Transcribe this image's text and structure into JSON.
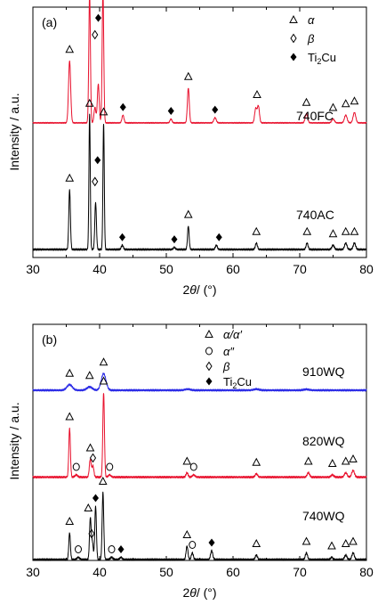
{
  "colors": {
    "red": "#e8112d",
    "black": "#000000",
    "blue": "#2a2ae6"
  },
  "chart_data": [
    {
      "panel_label": "(a)",
      "type": "line",
      "xlabel": "2θ/ (°)",
      "ylabel": "Intensity / a.u.",
      "xlim": [
        30,
        80
      ],
      "xticks": [
        30,
        40,
        50,
        60,
        70,
        80
      ],
      "legend": [
        {
          "marker": "triangle",
          "label": "α"
        },
        {
          "marker": "diamond-open",
          "label": "β"
        },
        {
          "marker": "diamond-filled",
          "label": "Ti2Cu"
        }
      ],
      "series": [
        {
          "name": "740FC",
          "color": "#e8112d",
          "baseline": 0.18,
          "peaks": [
            {
              "x": 35.5,
              "h": 0.48,
              "w": 0.16
            },
            {
              "x": 38.5,
              "h": 1.0,
              "w": 0.12
            },
            {
              "x": 39.3,
              "h": 0.12,
              "w": 0.14
            },
            {
              "x": 39.8,
              "h": 0.3,
              "w": 0.14
            },
            {
              "x": 40.5,
              "h": 1.02,
              "w": 0.12
            },
            {
              "x": 43.5,
              "h": 0.06,
              "w": 0.15
            },
            {
              "x": 50.7,
              "h": 0.03,
              "w": 0.15
            },
            {
              "x": 53.3,
              "h": 0.27,
              "w": 0.14
            },
            {
              "x": 57.3,
              "h": 0.04,
              "w": 0.18
            },
            {
              "x": 63.4,
              "h": 0.11,
              "w": 0.16
            },
            {
              "x": 63.8,
              "h": 0.13,
              "w": 0.16
            },
            {
              "x": 71.0,
              "h": 0.07,
              "w": 0.18
            },
            {
              "x": 75.0,
              "h": 0.03,
              "w": 0.2
            },
            {
              "x": 76.9,
              "h": 0.06,
              "w": 0.2
            },
            {
              "x": 78.2,
              "h": 0.08,
              "w": 0.2
            }
          ],
          "markers": [
            {
              "x": 35.5,
              "symbol": "triangle",
              "h": 0.48
            },
            {
              "x": 38.5,
              "symbol": "triangle",
              "h": 1.0
            },
            {
              "x": 39.3,
              "symbol": "diamond-open",
              "h": 0.62
            },
            {
              "x": 39.8,
              "symbol": "diamond-filled",
              "h": 0.75
            },
            {
              "x": 40.5,
              "symbol": "triangle",
              "h": 1.02
            },
            {
              "x": 43.5,
              "symbol": "diamond-filled",
              "h": 0.06
            },
            {
              "x": 50.7,
              "symbol": "diamond-filled",
              "h": 0.03
            },
            {
              "x": 53.3,
              "symbol": "triangle",
              "h": 0.27
            },
            {
              "x": 57.3,
              "symbol": "diamond-filled",
              "h": 0.04
            },
            {
              "x": 63.6,
              "symbol": "triangle",
              "h": 0.13
            },
            {
              "x": 71.0,
              "symbol": "triangle",
              "h": 0.07
            },
            {
              "x": 75.0,
              "symbol": "triangle",
              "h": 0.03
            },
            {
              "x": 76.9,
              "symbol": "triangle",
              "h": 0.06
            },
            {
              "x": 78.2,
              "symbol": "triangle",
              "h": 0.08
            }
          ]
        },
        {
          "name": "740AC",
          "color": "#000000",
          "baseline": 0.0,
          "peaks": [
            {
              "x": 35.5,
              "h": 0.28,
              "w": 0.12
            },
            {
              "x": 38.5,
              "h": 0.63,
              "w": 0.1
            },
            {
              "x": 39.4,
              "h": 0.22,
              "w": 0.12
            },
            {
              "x": 40.6,
              "h": 0.59,
              "w": 0.1
            },
            {
              "x": 43.4,
              "h": 0.02,
              "w": 0.15
            },
            {
              "x": 51.2,
              "h": 0.01,
              "w": 0.15
            },
            {
              "x": 53.3,
              "h": 0.11,
              "w": 0.12
            },
            {
              "x": 57.5,
              "h": 0.02,
              "w": 0.15
            },
            {
              "x": 63.5,
              "h": 0.03,
              "w": 0.15
            },
            {
              "x": 71.1,
              "h": 0.03,
              "w": 0.15
            },
            {
              "x": 75.0,
              "h": 0.02,
              "w": 0.18
            },
            {
              "x": 76.9,
              "h": 0.03,
              "w": 0.18
            },
            {
              "x": 78.2,
              "h": 0.03,
              "w": 0.18
            }
          ],
          "markers": [
            {
              "x": 35.5,
              "symbol": "triangle",
              "h": 0.28
            },
            {
              "x": 38.5,
              "symbol": "triangle",
              "h": 0.63
            },
            {
              "x": 39.3,
              "symbol": "diamond-open",
              "h": 0.28
            },
            {
              "x": 39.7,
              "symbol": "diamond-filled",
              "h": 0.38
            },
            {
              "x": 40.6,
              "symbol": "triangle",
              "h": 0.59
            },
            {
              "x": 43.4,
              "symbol": "diamond-filled",
              "h": 0.02
            },
            {
              "x": 51.2,
              "symbol": "diamond-filled",
              "h": 0.01
            },
            {
              "x": 53.3,
              "symbol": "triangle",
              "h": 0.11
            },
            {
              "x": 57.9,
              "symbol": "diamond-filled",
              "h": 0.02
            },
            {
              "x": 63.5,
              "symbol": "triangle",
              "h": 0.03
            },
            {
              "x": 71.1,
              "symbol": "triangle",
              "h": 0.03
            },
            {
              "x": 75.0,
              "symbol": "triangle",
              "h": 0.02
            },
            {
              "x": 76.9,
              "symbol": "triangle",
              "h": 0.03
            },
            {
              "x": 78.2,
              "symbol": "triangle",
              "h": 0.03
            }
          ]
        }
      ]
    },
    {
      "panel_label": "(b)",
      "type": "line",
      "xlabel": "2θ/ (°)",
      "ylabel": "Intensity / a.u.",
      "xlim": [
        30,
        80
      ],
      "xticks": [
        30,
        40,
        50,
        60,
        70,
        80
      ],
      "legend": [
        {
          "marker": "triangle",
          "label": "α/α′"
        },
        {
          "marker": "circle-open",
          "label": "α″"
        },
        {
          "marker": "diamond-open",
          "label": "β"
        },
        {
          "marker": "diamond-filled",
          "label": "Ti2Cu"
        }
      ],
      "series": [
        {
          "name": "910WQ",
          "color": "#2a2ae6",
          "baseline": 0.76,
          "peaks": [
            {
              "x": 35.5,
              "h": 0.025,
              "w": 0.4
            },
            {
              "x": 38.5,
              "h": 0.015,
              "w": 0.4
            },
            {
              "x": 40.6,
              "h": 0.075,
              "w": 0.35
            },
            {
              "x": 53.2,
              "h": 0.005,
              "w": 0.4
            },
            {
              "x": 63.5,
              "h": 0.005,
              "w": 0.4
            },
            {
              "x": 71.0,
              "h": 0.004,
              "w": 0.4
            }
          ],
          "markers": [
            {
              "x": 35.5,
              "symbol": "triangle",
              "h": 0.025
            },
            {
              "x": 38.5,
              "symbol": "triangle",
              "h": 0.015
            },
            {
              "x": 40.6,
              "symbol": "triangle",
              "h": 0.075
            }
          ]
        },
        {
          "name": "820WQ",
          "color": "#e8112d",
          "baseline": 0.37,
          "peaks": [
            {
              "x": 35.5,
              "h": 0.22,
              "w": 0.12
            },
            {
              "x": 36.5,
              "h": 0.01,
              "w": 0.2
            },
            {
              "x": 38.6,
              "h": 0.08,
              "w": 0.14
            },
            {
              "x": 39.0,
              "h": 0.05,
              "w": 0.14
            },
            {
              "x": 40.6,
              "h": 0.38,
              "w": 0.12
            },
            {
              "x": 41.5,
              "h": 0.01,
              "w": 0.2
            },
            {
              "x": 53.1,
              "h": 0.02,
              "w": 0.15
            },
            {
              "x": 54.1,
              "h": 0.01,
              "w": 0.2
            },
            {
              "x": 63.5,
              "h": 0.015,
              "w": 0.18
            },
            {
              "x": 71.3,
              "h": 0.02,
              "w": 0.18
            },
            {
              "x": 74.9,
              "h": 0.01,
              "w": 0.2
            },
            {
              "x": 76.9,
              "h": 0.02,
              "w": 0.2
            },
            {
              "x": 78.0,
              "h": 0.03,
              "w": 0.2
            }
          ],
          "markers": [
            {
              "x": 35.5,
              "symbol": "triangle",
              "h": 0.22
            },
            {
              "x": 36.5,
              "symbol": "circle-open",
              "h": 0.01
            },
            {
              "x": 38.6,
              "symbol": "triangle",
              "h": 0.08
            },
            {
              "x": 39.0,
              "symbol": "diamond-open",
              "h": 0.05
            },
            {
              "x": 40.6,
              "symbol": "triangle",
              "h": 0.38
            },
            {
              "x": 41.5,
              "symbol": "circle-open",
              "h": 0.01
            },
            {
              "x": 53.1,
              "symbol": "triangle",
              "h": 0.02
            },
            {
              "x": 54.1,
              "symbol": "circle-open",
              "h": 0.01
            },
            {
              "x": 63.5,
              "symbol": "triangle",
              "h": 0.015
            },
            {
              "x": 71.3,
              "symbol": "triangle",
              "h": 0.02
            },
            {
              "x": 74.9,
              "symbol": "triangle",
              "h": 0.01
            },
            {
              "x": 76.9,
              "symbol": "triangle",
              "h": 0.02
            },
            {
              "x": 78.0,
              "symbol": "triangle",
              "h": 0.03
            }
          ]
        },
        {
          "name": "740WQ",
          "color": "#000000",
          "baseline": 0.0,
          "peaks": [
            {
              "x": 35.5,
              "h": 0.12,
              "w": 0.12
            },
            {
              "x": 36.8,
              "h": 0.01,
              "w": 0.2
            },
            {
              "x": 38.6,
              "h": 0.18,
              "w": 0.12
            },
            {
              "x": 38.9,
              "h": 0.08,
              "w": 0.14
            },
            {
              "x": 39.4,
              "h": 0.24,
              "w": 0.12
            },
            {
              "x": 40.5,
              "h": 0.3,
              "w": 0.12
            },
            {
              "x": 41.8,
              "h": 0.01,
              "w": 0.2
            },
            {
              "x": 43.2,
              "h": 0.01,
              "w": 0.18
            },
            {
              "x": 53.1,
              "h": 0.06,
              "w": 0.14
            },
            {
              "x": 53.9,
              "h": 0.03,
              "w": 0.15
            },
            {
              "x": 56.8,
              "h": 0.04,
              "w": 0.16
            },
            {
              "x": 63.5,
              "h": 0.02,
              "w": 0.16
            },
            {
              "x": 71.0,
              "h": 0.03,
              "w": 0.16
            },
            {
              "x": 74.8,
              "h": 0.01,
              "w": 0.18
            },
            {
              "x": 76.9,
              "h": 0.02,
              "w": 0.18
            },
            {
              "x": 78.0,
              "h": 0.03,
              "w": 0.18
            }
          ],
          "markers": [
            {
              "x": 35.5,
              "symbol": "triangle",
              "h": 0.12
            },
            {
              "x": 36.8,
              "symbol": "circle-open",
              "h": 0.01
            },
            {
              "x": 38.3,
              "symbol": "triangle",
              "h": 0.18
            },
            {
              "x": 38.8,
              "symbol": "diamond-open",
              "h": 0.08
            },
            {
              "x": 39.4,
              "symbol": "diamond-filled",
              "h": 0.24
            },
            {
              "x": 40.5,
              "symbol": "triangle",
              "h": 0.3
            },
            {
              "x": 41.8,
              "symbol": "circle-open",
              "h": 0.01
            },
            {
              "x": 43.2,
              "symbol": "diamond-filled",
              "h": 0.01
            },
            {
              "x": 53.1,
              "symbol": "triangle",
              "h": 0.06
            },
            {
              "x": 53.9,
              "symbol": "circle-open",
              "h": 0.03
            },
            {
              "x": 56.8,
              "symbol": "diamond-filled",
              "h": 0.04
            },
            {
              "x": 63.5,
              "symbol": "triangle",
              "h": 0.02
            },
            {
              "x": 71.0,
              "symbol": "triangle",
              "h": 0.03
            },
            {
              "x": 74.8,
              "symbol": "triangle",
              "h": 0.01
            },
            {
              "x": 76.9,
              "symbol": "triangle",
              "h": 0.02
            },
            {
              "x": 78.0,
              "symbol": "triangle",
              "h": 0.03
            }
          ]
        }
      ]
    }
  ]
}
